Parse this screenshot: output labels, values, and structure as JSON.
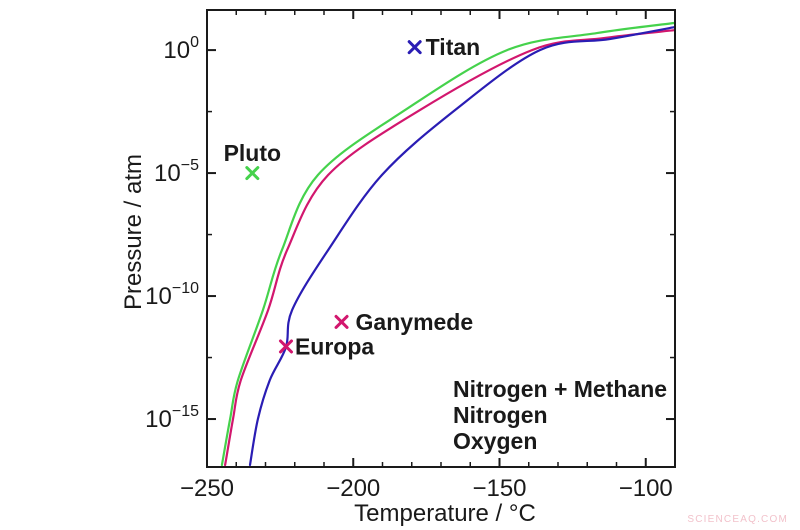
{
  "page": {
    "background": "#ffffff"
  },
  "watermark": {
    "text": "SCIENCEAQ.COM",
    "color": "#f2c2cb"
  },
  "chart_data": {
    "type": "line",
    "title": "",
    "xlabel": "Temperature / °C",
    "ylabel": "Pressure / atm",
    "x_axis": {
      "min": -250,
      "max": -90,
      "major_ticks": [
        -250,
        -200,
        -150,
        -100
      ],
      "minor_step": 10
    },
    "y_axis": {
      "scale": "log10",
      "unit": "atm",
      "top_exponent": 1.63,
      "bottom_exponent": -16.95,
      "major_exponents": [
        0,
        -5,
        -10,
        -15
      ],
      "minor_exponents": [
        -2.5,
        -7.5,
        -12.5
      ]
    },
    "grid": "off",
    "series": [
      {
        "name": "Nitrogen + Methane",
        "color": "#2a1db4",
        "points": [
          [
            -235.3,
            -16.87
          ],
          [
            -232.6,
            -15.0
          ],
          [
            -228.5,
            -13.41
          ],
          [
            -223.0,
            -12.07
          ],
          [
            -220.9,
            -10.57
          ],
          [
            -208.6,
            -8.13
          ],
          [
            -190.2,
            -5.08
          ],
          [
            -165.2,
            -2.44
          ],
          [
            -136.2,
            0.0
          ],
          [
            -112.3,
            0.45
          ],
          [
            -90.3,
            0.93
          ]
        ]
      },
      {
        "name": "Nitrogen",
        "color": "#45d24c",
        "points": [
          [
            -244.9,
            -16.87
          ],
          [
            -242.1,
            -15.0
          ],
          [
            -239.4,
            -13.41
          ],
          [
            -230.9,
            -10.57
          ],
          [
            -224.4,
            -8.13
          ],
          [
            -212.1,
            -5.08
          ],
          [
            -182.3,
            -2.44
          ],
          [
            -147.4,
            0.0
          ],
          [
            -116.7,
            0.69
          ],
          [
            -90.3,
            1.1
          ]
        ]
      },
      {
        "name": "Oxygen",
        "color": "#d2176e",
        "points": [
          [
            -243.8,
            -16.87
          ],
          [
            -241.1,
            -15.0
          ],
          [
            -238.4,
            -13.41
          ],
          [
            -229.1,
            -10.57
          ],
          [
            -222.6,
            -8.13
          ],
          [
            -208.6,
            -5.08
          ],
          [
            -177.2,
            -2.44
          ],
          [
            -138.9,
            0.0
          ],
          [
            -114.0,
            0.49
          ],
          [
            -90.3,
            0.81
          ]
        ]
      }
    ],
    "draw_order": [
      2,
      0,
      1
    ],
    "markers": [
      {
        "label": "Titan",
        "color": "#2a1db4",
        "t": -179.0,
        "logp": 0.12,
        "label_side": "right",
        "offset": 11
      },
      {
        "label": "Pluto",
        "color": "#45d24c",
        "t": -234.5,
        "logp": -5.0,
        "label_side": "above",
        "offset": 12
      },
      {
        "label": "Ganymede",
        "color": "#d2176e",
        "t": -204.0,
        "logp": -11.05,
        "label_side": "right",
        "offset": 14
      },
      {
        "label": "Europa",
        "color": "#d2176e",
        "t": -223.0,
        "logp": -12.05,
        "label_side": "right",
        "offset": 9
      }
    ],
    "legend": {
      "position": "bottom-right",
      "entries": [
        {
          "name": "Nitrogen + Methane",
          "color": "#2a1db4"
        },
        {
          "name": "Nitrogen",
          "color": "#45d24c"
        },
        {
          "name": "Oxygen",
          "color": "#d2176e"
        }
      ]
    }
  }
}
